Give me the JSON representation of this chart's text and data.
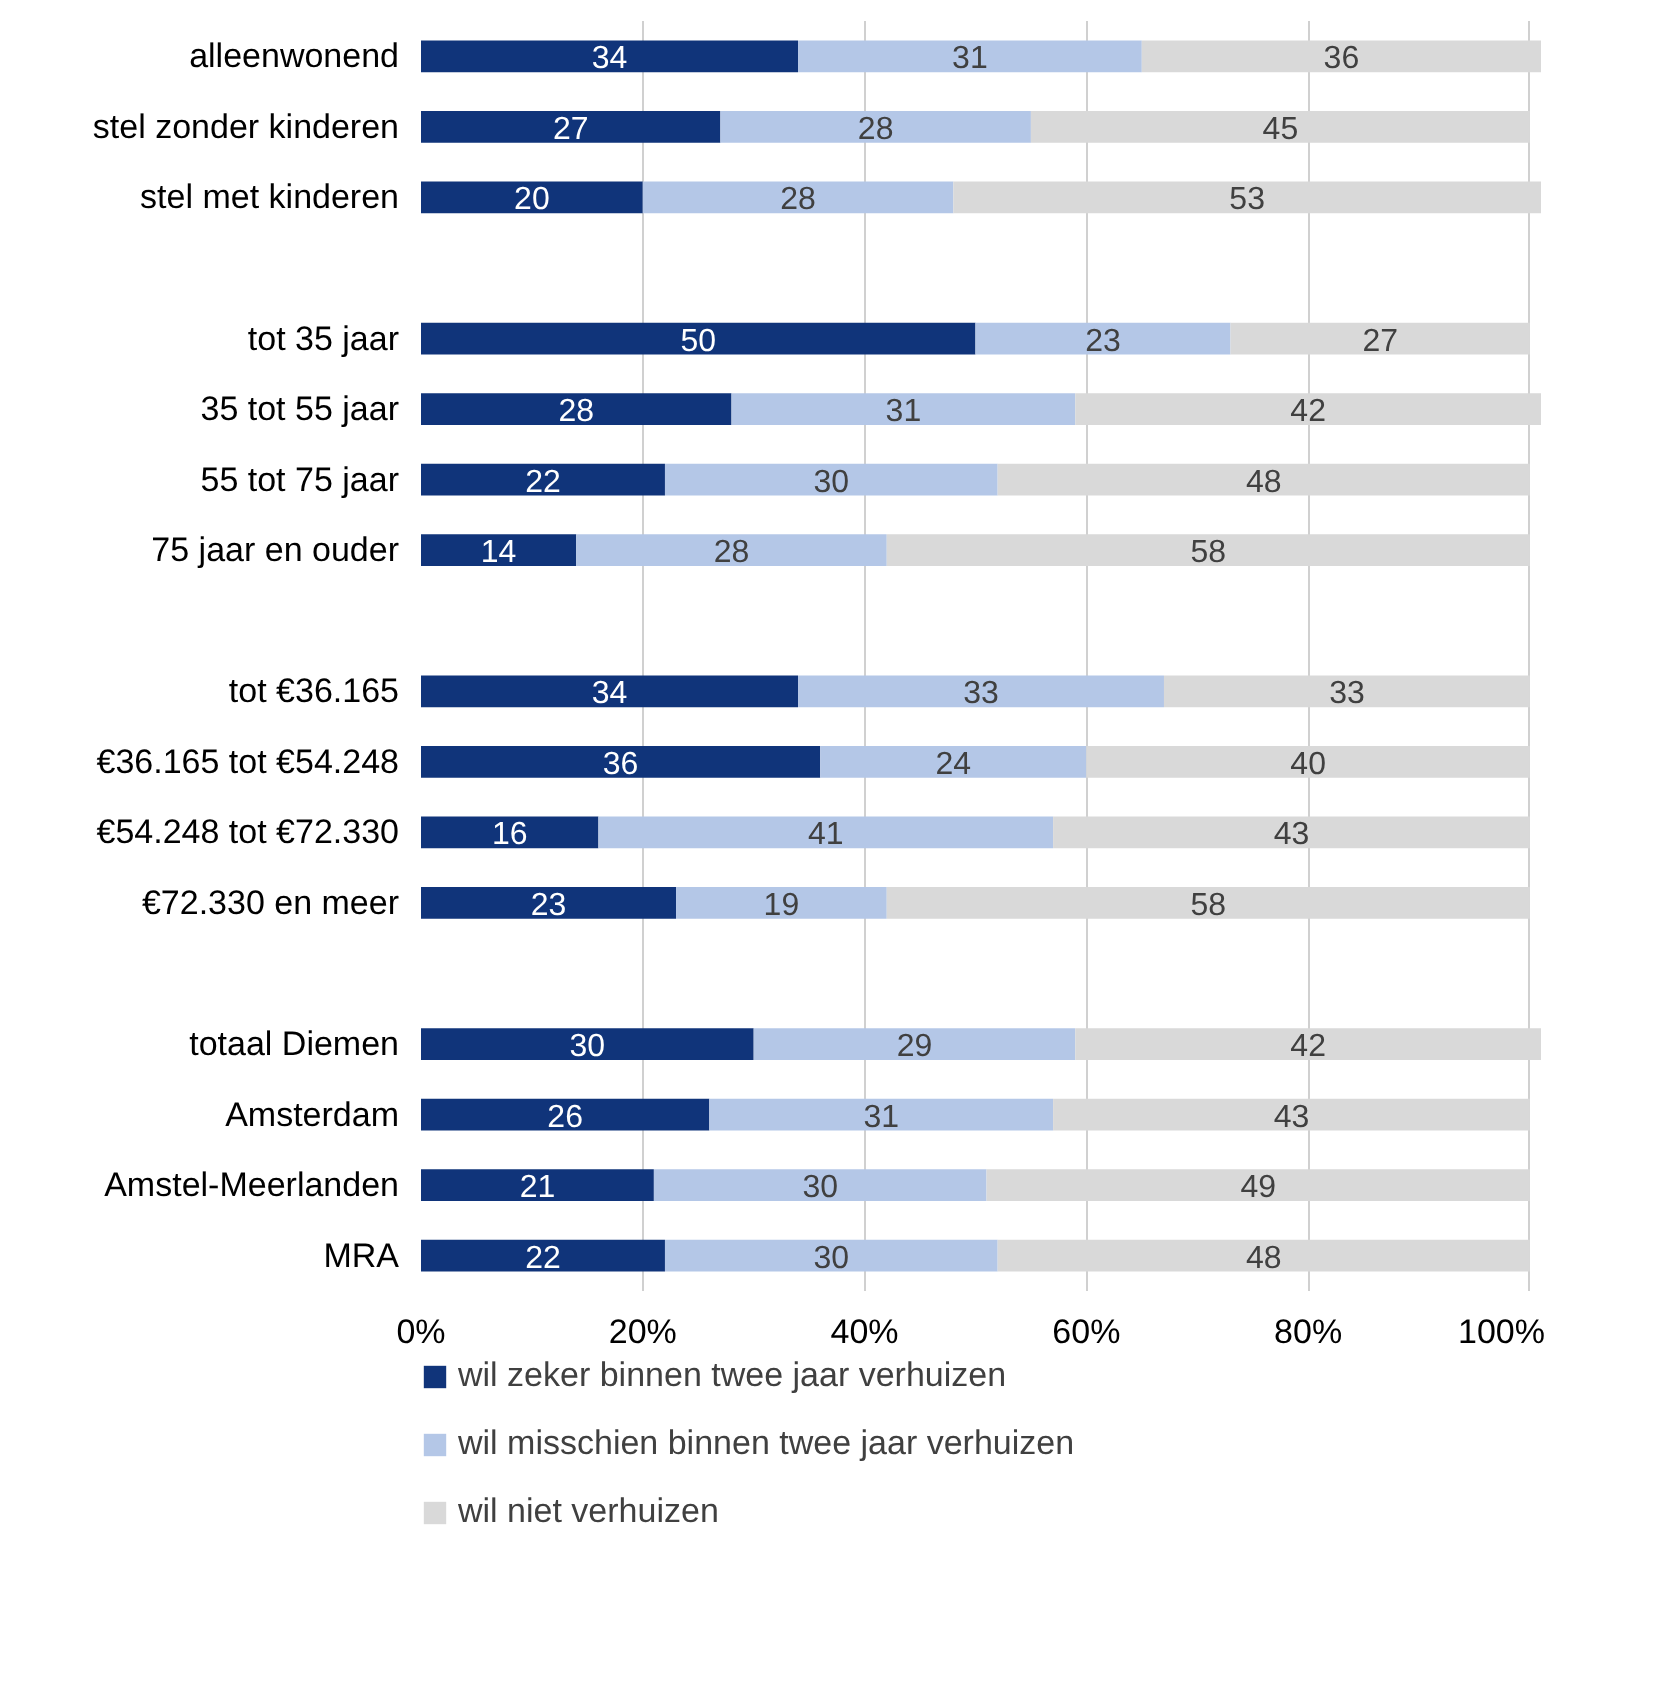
{
  "chart_data": {
    "type": "bar",
    "orientation": "horizontal",
    "stacked": true,
    "data_labels": true,
    "grid": "x",
    "legend": "bottom",
    "categories": [
      "alleenwonend",
      "stel zonder kinderen",
      "stel met kinderen",
      null,
      "tot 35 jaar",
      "35 tot 55 jaar",
      "55 tot 75 jaar",
      "75 jaar en ouder",
      null,
      "tot €36.165",
      "€36.165 tot €54.248",
      "€54.248 tot €72.330",
      "€72.330 en meer",
      null,
      "totaal Diemen",
      "Amsterdam",
      "Amstel-Meerlanden",
      "MRA"
    ],
    "xlim": [
      0,
      101
    ],
    "xticks": [
      {
        "value": 0,
        "label": "0%"
      },
      {
        "value": 20,
        "label": "20%"
      },
      {
        "value": 40,
        "label": "40%"
      },
      {
        "value": 60,
        "label": "60%"
      },
      {
        "value": 80,
        "label": "80%"
      },
      {
        "value": 100,
        "label": "100%"
      }
    ],
    "series": [
      {
        "name": "wil zeker binnen twee jaar verhuizen",
        "color": "#10347a",
        "values": [
          34,
          27,
          20,
          null,
          50,
          28,
          22,
          14,
          null,
          34,
          36,
          16,
          23,
          null,
          30,
          26,
          21,
          22
        ]
      },
      {
        "name": "wil misschien binnen twee jaar verhuizen",
        "color": "#b4c7e7",
        "values": [
          31,
          28,
          28,
          null,
          23,
          31,
          30,
          28,
          null,
          33,
          24,
          41,
          19,
          null,
          29,
          31,
          30,
          30
        ]
      },
      {
        "name": "wil niet verhuizen",
        "color": "#d9d9d9",
        "values": [
          36,
          45,
          53,
          null,
          27,
          42,
          48,
          58,
          null,
          33,
          40,
          43,
          58,
          null,
          42,
          43,
          49,
          48
        ]
      }
    ]
  }
}
